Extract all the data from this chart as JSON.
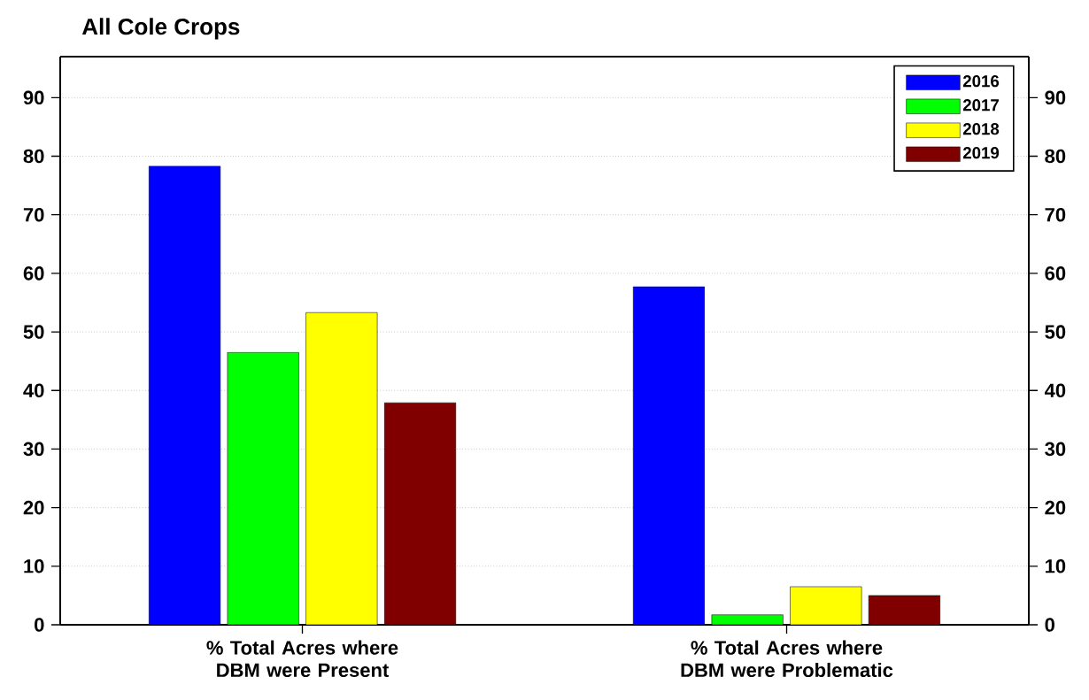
{
  "chart_data": {
    "type": "bar",
    "title": "All Cole Crops",
    "categories": [
      "% Total Acres where DBM were Present",
      "% Total Acres where DBM were Problematic"
    ],
    "series": [
      {
        "name": "2016",
        "color": "#0000ff",
        "values": [
          78.3,
          57.7
        ]
      },
      {
        "name": "2017",
        "color": "#00ff00",
        "values": [
          46.5,
          1.7
        ]
      },
      {
        "name": "2018",
        "color": "#ffff00",
        "values": [
          53.3,
          6.5
        ]
      },
      {
        "name": "2019",
        "color": "#800000",
        "values": [
          37.9,
          5.0
        ]
      }
    ],
    "ylim": [
      0,
      97
    ],
    "yticks": [
      0,
      10,
      20,
      30,
      40,
      50,
      60,
      70,
      80,
      90
    ],
    "y2lim": [
      0,
      97
    ],
    "y2ticks": [
      0,
      10,
      20,
      30,
      40,
      50,
      60,
      70,
      80,
      90
    ],
    "grid": "y",
    "legend": "top right"
  }
}
